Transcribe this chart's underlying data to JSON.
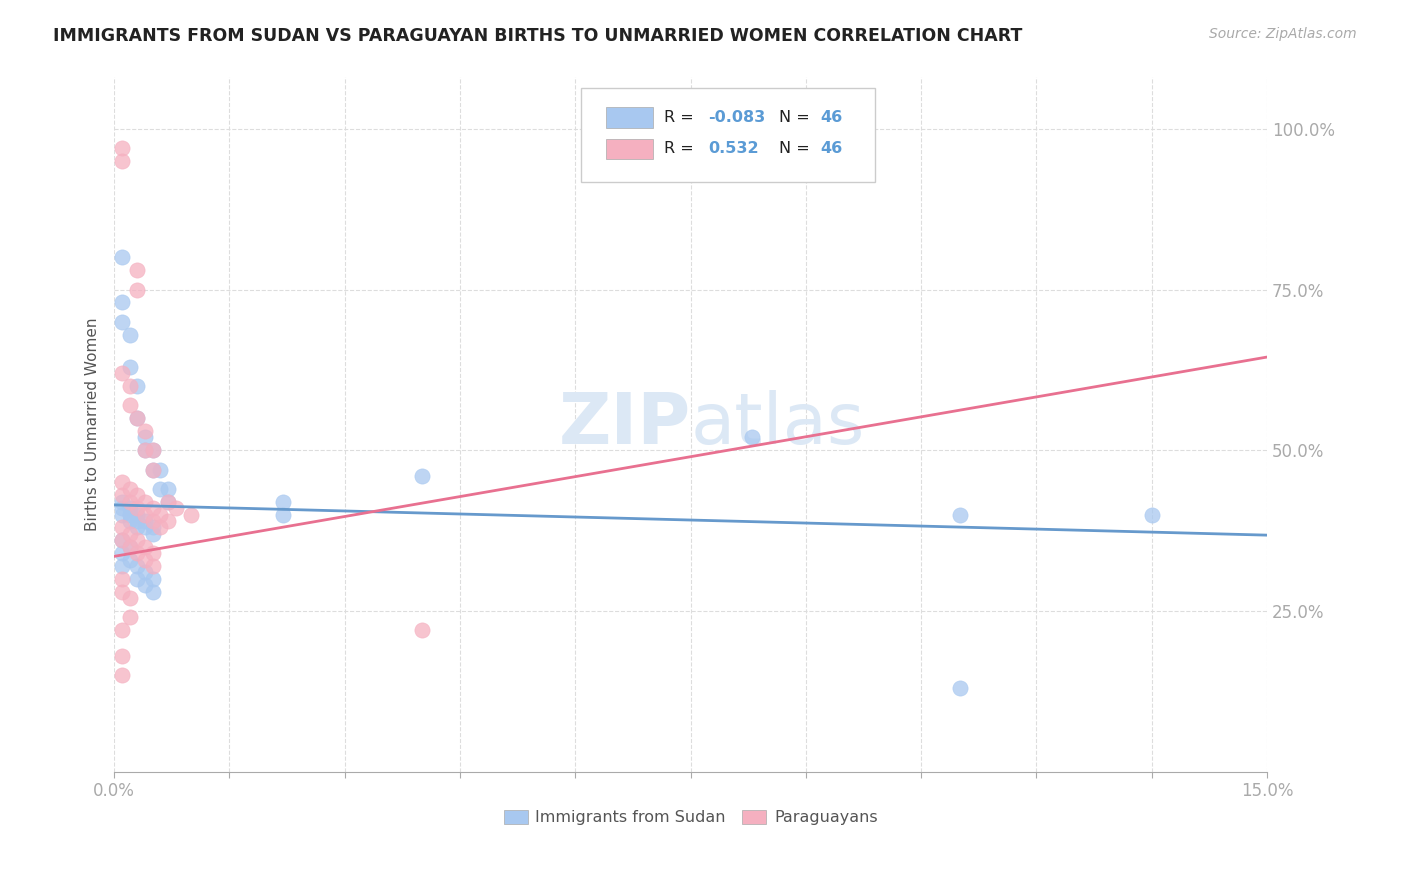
{
  "title": "IMMIGRANTS FROM SUDAN VS PARAGUAYAN BIRTHS TO UNMARRIED WOMEN CORRELATION CHART",
  "source": "Source: ZipAtlas.com",
  "ylabel": "Births to Unmarried Women",
  "sudan_color": "#a8c8f0",
  "paraguay_color": "#f5b0c0",
  "sudan_line_color": "#6699cc",
  "paraguay_line_color": "#e87090",
  "watermark_color": "#dce8f5",
  "bg_color": "#ffffff",
  "grid_color": "#dddddd",
  "tick_color": "#5b9bd5",
  "title_color": "#222222",
  "label_color": "#555555",
  "xlim": [
    0.0,
    0.15
  ],
  "ylim": [
    0.0,
    1.08
  ],
  "x_ticks": [
    0.0,
    0.015,
    0.03,
    0.045,
    0.06,
    0.075,
    0.09,
    0.105,
    0.12,
    0.135,
    0.15
  ],
  "y_ticks": [
    0.25,
    0.5,
    0.75,
    1.0
  ],
  "sudan_line": [
    0.0,
    0.415,
    0.15,
    0.368
  ],
  "paraguay_line": [
    0.0,
    0.335,
    0.15,
    0.645
  ],
  "sudan_points": [
    [
      0.001,
      0.8
    ],
    [
      0.001,
      0.73
    ],
    [
      0.001,
      0.7
    ],
    [
      0.002,
      0.68
    ],
    [
      0.002,
      0.63
    ],
    [
      0.003,
      0.6
    ],
    [
      0.003,
      0.55
    ],
    [
      0.004,
      0.52
    ],
    [
      0.004,
      0.5
    ],
    [
      0.005,
      0.5
    ],
    [
      0.005,
      0.47
    ],
    [
      0.006,
      0.47
    ],
    [
      0.006,
      0.44
    ],
    [
      0.007,
      0.44
    ],
    [
      0.007,
      0.42
    ],
    [
      0.001,
      0.42
    ],
    [
      0.001,
      0.41
    ],
    [
      0.001,
      0.4
    ],
    [
      0.002,
      0.41
    ],
    [
      0.002,
      0.4
    ],
    [
      0.002,
      0.39
    ],
    [
      0.003,
      0.4
    ],
    [
      0.003,
      0.39
    ],
    [
      0.003,
      0.38
    ],
    [
      0.004,
      0.39
    ],
    [
      0.004,
      0.38
    ],
    [
      0.005,
      0.38
    ],
    [
      0.005,
      0.37
    ],
    [
      0.001,
      0.36
    ],
    [
      0.001,
      0.34
    ],
    [
      0.001,
      0.32
    ],
    [
      0.002,
      0.35
    ],
    [
      0.002,
      0.33
    ],
    [
      0.003,
      0.32
    ],
    [
      0.003,
      0.3
    ],
    [
      0.004,
      0.31
    ],
    [
      0.004,
      0.29
    ],
    [
      0.005,
      0.3
    ],
    [
      0.005,
      0.28
    ],
    [
      0.022,
      0.42
    ],
    [
      0.022,
      0.4
    ],
    [
      0.04,
      0.46
    ],
    [
      0.083,
      0.52
    ],
    [
      0.11,
      0.13
    ],
    [
      0.11,
      0.4
    ],
    [
      0.135,
      0.4
    ]
  ],
  "paraguay_points": [
    [
      0.001,
      0.97
    ],
    [
      0.001,
      0.95
    ],
    [
      0.003,
      0.78
    ],
    [
      0.003,
      0.75
    ],
    [
      0.001,
      0.62
    ],
    [
      0.002,
      0.6
    ],
    [
      0.002,
      0.57
    ],
    [
      0.003,
      0.55
    ],
    [
      0.004,
      0.53
    ],
    [
      0.004,
      0.5
    ],
    [
      0.005,
      0.5
    ],
    [
      0.005,
      0.47
    ],
    [
      0.001,
      0.45
    ],
    [
      0.001,
      0.43
    ],
    [
      0.002,
      0.44
    ],
    [
      0.002,
      0.42
    ],
    [
      0.003,
      0.43
    ],
    [
      0.003,
      0.41
    ],
    [
      0.004,
      0.42
    ],
    [
      0.004,
      0.4
    ],
    [
      0.005,
      0.41
    ],
    [
      0.005,
      0.39
    ],
    [
      0.006,
      0.4
    ],
    [
      0.006,
      0.38
    ],
    [
      0.007,
      0.39
    ],
    [
      0.001,
      0.38
    ],
    [
      0.001,
      0.36
    ],
    [
      0.002,
      0.37
    ],
    [
      0.002,
      0.35
    ],
    [
      0.003,
      0.36
    ],
    [
      0.003,
      0.34
    ],
    [
      0.004,
      0.35
    ],
    [
      0.004,
      0.33
    ],
    [
      0.005,
      0.34
    ],
    [
      0.005,
      0.32
    ],
    [
      0.001,
      0.3
    ],
    [
      0.001,
      0.28
    ],
    [
      0.002,
      0.27
    ],
    [
      0.002,
      0.24
    ],
    [
      0.001,
      0.22
    ],
    [
      0.001,
      0.18
    ],
    [
      0.001,
      0.15
    ],
    [
      0.04,
      0.22
    ],
    [
      0.007,
      0.42
    ],
    [
      0.008,
      0.41
    ],
    [
      0.01,
      0.4
    ]
  ]
}
